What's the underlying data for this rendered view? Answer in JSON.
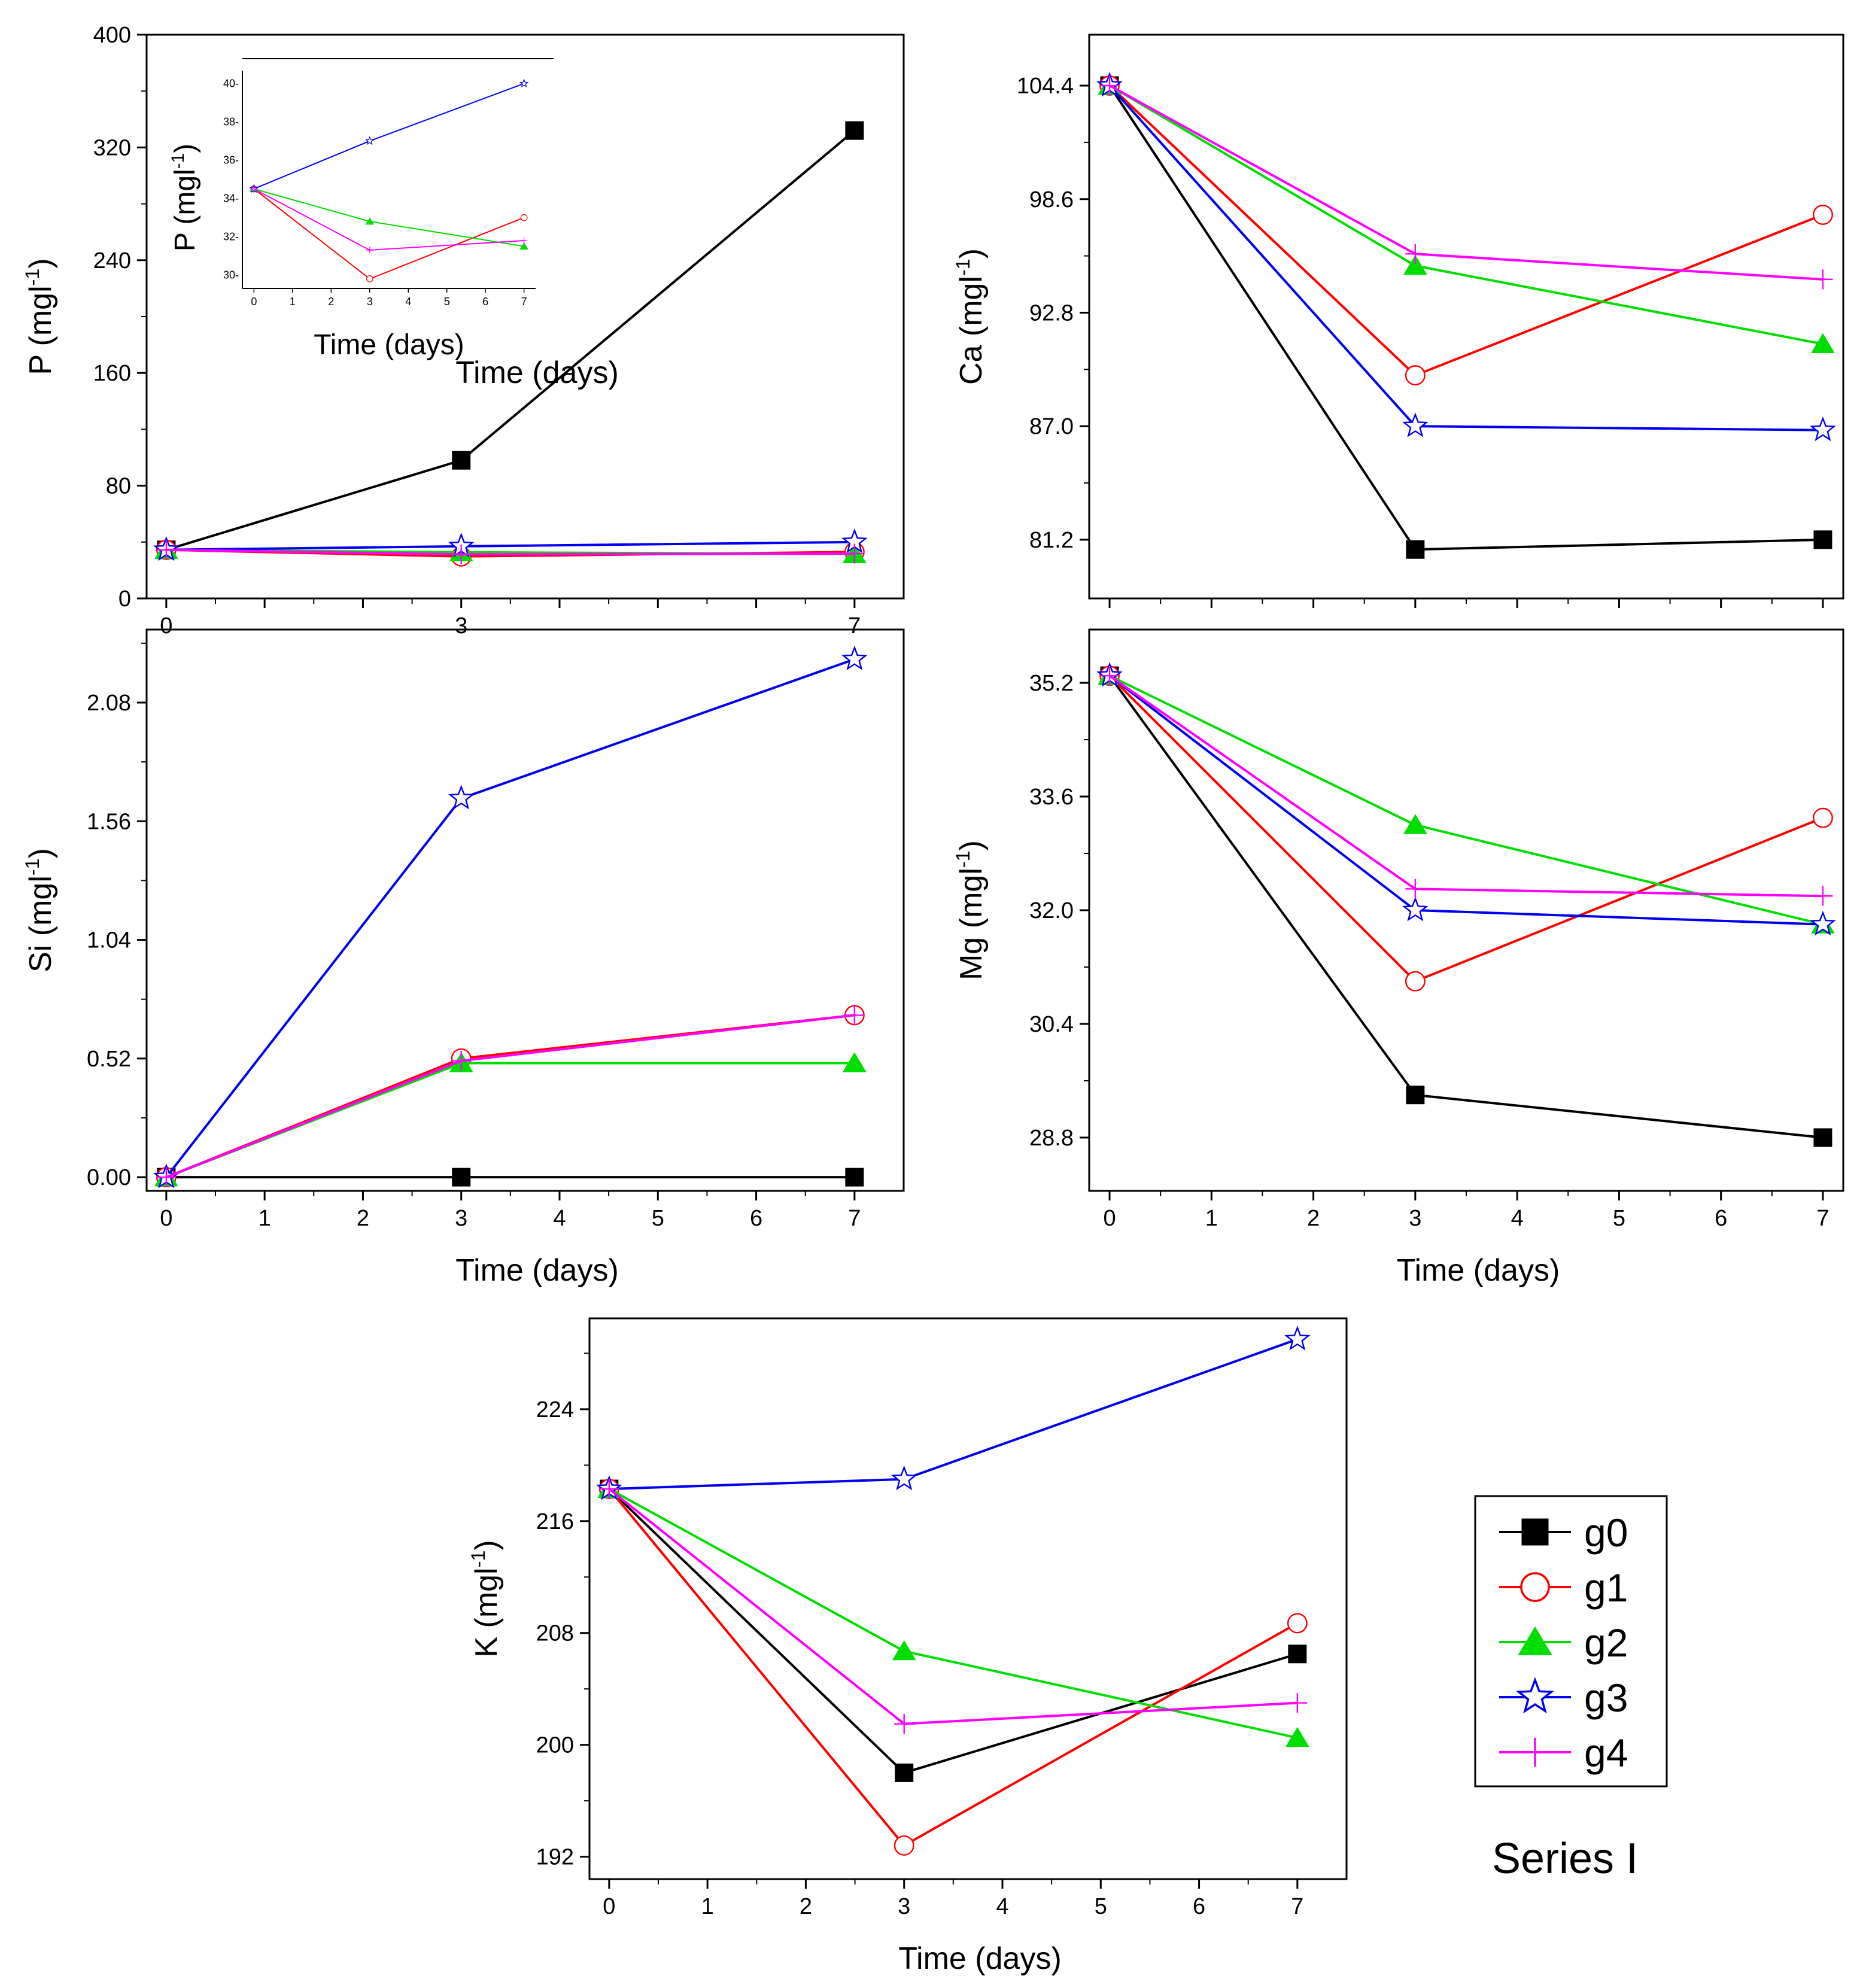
{
  "chart_data": [
    {
      "id": "P",
      "type": "line",
      "ylabel_main": "P (mgl",
      "ylabel_sup": "-1",
      "ylabel_tail": ")",
      "xlabel": "Time (days)",
      "x": [
        0,
        3,
        7
      ],
      "xlim": [
        -0.2,
        7.5
      ],
      "xticks": [
        0,
        1,
        2,
        3,
        4,
        5,
        6,
        7
      ],
      "xtick_labels": [
        "0",
        "",
        "",
        "3",
        "",
        "",
        "",
        "7"
      ],
      "ylim": [
        0,
        400
      ],
      "yticks": [
        0,
        80,
        160,
        240,
        320,
        400
      ],
      "ytick_labels": [
        "0",
        "80",
        "160",
        "240",
        "320",
        "400"
      ],
      "series": [
        {
          "name": "g0",
          "values": [
            34.5,
            98,
            332
          ]
        },
        {
          "name": "g1",
          "values": [
            34.5,
            29.8,
            33
          ]
        },
        {
          "name": "g2",
          "values": [
            34.5,
            32.8,
            31.5
          ]
        },
        {
          "name": "g3",
          "values": [
            34.5,
            37,
            40
          ]
        },
        {
          "name": "g4",
          "values": [
            34.5,
            31.3,
            31.8
          ]
        }
      ],
      "inset": {
        "ylabel_main": "P (mgl",
        "ylabel_sup": "-1",
        "ylabel_tail": ")",
        "xlabel": "Time (days)",
        "xlim": [
          -0.3,
          7.3
        ],
        "xticks": [
          0,
          1,
          2,
          3,
          4,
          5,
          6,
          7
        ],
        "xtick_labels": [
          "0",
          "1",
          "2",
          "3",
          "4",
          "5",
          "6",
          "7"
        ],
        "ylim": [
          29.3,
          41.3
        ],
        "yticks": [
          30,
          32,
          34,
          36,
          38,
          40
        ],
        "ytick_labels": [
          "30-",
          "32-",
          "34-",
          "36-",
          "38-",
          "40-"
        ],
        "series": [
          {
            "name": "g1",
            "values": [
              34.5,
              29.8,
              33
            ]
          },
          {
            "name": "g2",
            "values": [
              34.5,
              32.8,
              31.5
            ]
          },
          {
            "name": "g3",
            "values": [
              34.5,
              37,
              40
            ]
          },
          {
            "name": "g4",
            "values": [
              34.5,
              31.3,
              31.8
            ]
          }
        ]
      }
    },
    {
      "id": "Ca",
      "type": "line",
      "ylabel_main": "Ca (mgl",
      "ylabel_sup": "-1",
      "ylabel_tail": ")",
      "xlabel": "",
      "x": [
        0,
        3,
        7
      ],
      "xlim": [
        -0.2,
        7.2
      ],
      "xticks": [
        0,
        1,
        2,
        3,
        4,
        5,
        6,
        7
      ],
      "xtick_labels": [
        "",
        "",
        "",
        "",
        "",
        "",
        "",
        ""
      ],
      "ylim": [
        78.2,
        107
      ],
      "yticks": [
        81.2,
        87.0,
        92.8,
        98.6,
        104.4
      ],
      "ytick_labels": [
        "81.2",
        "87.0",
        "92.8",
        "98.6",
        "104.4"
      ],
      "series": [
        {
          "name": "g0",
          "values": [
            104.4,
            80.7,
            81.2
          ]
        },
        {
          "name": "g1",
          "values": [
            104.4,
            89.6,
            97.8
          ]
        },
        {
          "name": "g2",
          "values": [
            104.4,
            95.2,
            91.2
          ]
        },
        {
          "name": "g3",
          "values": [
            104.4,
            87.0,
            86.8
          ]
        },
        {
          "name": "g4",
          "values": [
            104.4,
            95.8,
            94.5
          ]
        }
      ]
    },
    {
      "id": "Si",
      "type": "line",
      "ylabel_main": "Si (mgl",
      "ylabel_sup": "-1",
      "ylabel_tail": ")",
      "xlabel": "Time (days)",
      "x": [
        0,
        3,
        7
      ],
      "xlim": [
        -0.2,
        7.5
      ],
      "xticks": [
        0,
        1,
        2,
        3,
        4,
        5,
        6,
        7
      ],
      "xtick_labels": [
        "0",
        "1",
        "2",
        "3",
        "4",
        "5",
        "6",
        "7"
      ],
      "ylim": [
        -0.06,
        2.4
      ],
      "yticks": [
        0.0,
        0.52,
        1.04,
        1.56,
        2.08
      ],
      "ytick_labels": [
        "0.00",
        "0.52",
        "1.04",
        "1.56",
        "2.08"
      ],
      "series": [
        {
          "name": "g0",
          "values": [
            0,
            0,
            0
          ]
        },
        {
          "name": "g1",
          "values": [
            0,
            0.52,
            0.71
          ]
        },
        {
          "name": "g2",
          "values": [
            0,
            0.5,
            0.5
          ]
        },
        {
          "name": "g3",
          "values": [
            0,
            1.66,
            2.27
          ]
        },
        {
          "name": "g4",
          "values": [
            0,
            0.51,
            0.71
          ]
        }
      ]
    },
    {
      "id": "Mg",
      "type": "line",
      "ylabel_main": "Mg (mgl",
      "ylabel_sup": "-1",
      "ylabel_tail": ")",
      "xlabel": "Time (days)",
      "x": [
        0,
        3,
        7
      ],
      "xlim": [
        -0.2,
        7.2
      ],
      "xticks": [
        0,
        1,
        2,
        3,
        4,
        5,
        6,
        7
      ],
      "xtick_labels": [
        "0",
        "1",
        "2",
        "3",
        "4",
        "5",
        "6",
        "7"
      ],
      "ylim": [
        28.05,
        35.95
      ],
      "yticks": [
        28.8,
        30.4,
        32.0,
        33.6,
        35.2
      ],
      "ytick_labels": [
        "28.8",
        "30.4",
        "32.0",
        "33.6",
        "35.2"
      ],
      "series": [
        {
          "name": "g0",
          "values": [
            35.3,
            29.4,
            28.8
          ]
        },
        {
          "name": "g1",
          "values": [
            35.3,
            31.0,
            33.3
          ]
        },
        {
          "name": "g2",
          "values": [
            35.3,
            33.2,
            31.8
          ]
        },
        {
          "name": "g3",
          "values": [
            35.3,
            32.0,
            31.8
          ]
        },
        {
          "name": "g4",
          "values": [
            35.3,
            32.3,
            32.2
          ]
        }
      ]
    },
    {
      "id": "K",
      "type": "line",
      "ylabel_main": "K (mgl",
      "ylabel_sup": "-1",
      "ylabel_tail": ")",
      "xlabel": "Time (days)",
      "x": [
        0,
        3,
        7
      ],
      "xlim": [
        -0.2,
        7.5
      ],
      "xticks": [
        0,
        1,
        2,
        3,
        4,
        5,
        6,
        7
      ],
      "xtick_labels": [
        "0",
        "1",
        "2",
        "3",
        "4",
        "5",
        "6",
        "7"
      ],
      "ylim": [
        190.4,
        230.5
      ],
      "yticks": [
        192,
        200,
        208,
        216,
        224
      ],
      "ytick_labels": [
        "192",
        "200",
        "208",
        "216",
        "224"
      ],
      "series": [
        {
          "name": "g0",
          "values": [
            218.3,
            198.0,
            206.5
          ]
        },
        {
          "name": "g1",
          "values": [
            218.3,
            192.8,
            208.7
          ]
        },
        {
          "name": "g2",
          "values": [
            218.3,
            206.7,
            200.5
          ]
        },
        {
          "name": "g3",
          "values": [
            218.3,
            219.0,
            229.0
          ]
        },
        {
          "name": "g4",
          "values": [
            218.3,
            201.5,
            203.0
          ]
        }
      ]
    }
  ],
  "legend": {
    "items": [
      {
        "name": "g0",
        "label": "g0"
      },
      {
        "name": "g1",
        "label": "g1"
      },
      {
        "name": "g2",
        "label": "g2"
      },
      {
        "name": "g3",
        "label": "g3"
      },
      {
        "name": "g4",
        "label": "g4"
      }
    ]
  },
  "series_styles": {
    "g0": {
      "color": "#000000",
      "marker": "square-filled"
    },
    "g1": {
      "color": "#ff0000",
      "marker": "circle-open"
    },
    "g2": {
      "color": "#00dd00",
      "marker": "triangle-filled"
    },
    "g3": {
      "color": "#0000ee",
      "marker": "star-open"
    },
    "g4": {
      "color": "#ff00ff",
      "marker": "plus"
    }
  },
  "caption": "Series I"
}
